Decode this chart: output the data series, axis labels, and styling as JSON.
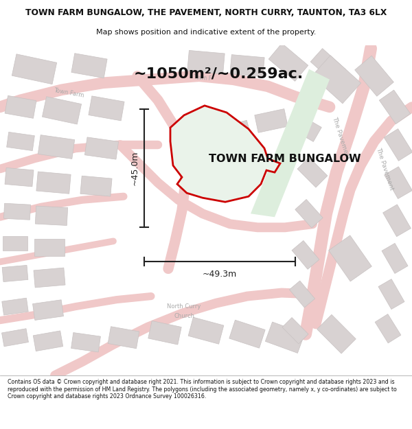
{
  "title_line1": "TOWN FARM BUNGALOW, THE PAVEMENT, NORTH CURRY, TAUNTON, TA3 6LX",
  "title_line2": "Map shows position and indicative extent of the property.",
  "area_text": "~1050m²/~0.259ac.",
  "property_label": "TOWN FARM BUNGALOW",
  "dim_vertical": "~45.0m",
  "dim_horizontal": "~49.3m",
  "footer_text": "Contains OS data © Crown copyright and database right 2021. This information is subject to Crown copyright and database rights 2023 and is reproduced with the permission of HM Land Registry. The polygons (including the associated geometry, namely x, y co-ordinates) are subject to Crown copyright and database rights 2023 Ordnance Survey 100026316.",
  "bg_color": "#ffffff",
  "map_bg": "#f8f4f4",
  "property_fill": "#e8f0e8",
  "property_edge": "#cc0000",
  "road_color": "#f0c8c8",
  "building_color": "#d8d2d2",
  "building_edge": "#c8c2c2",
  "dim_color": "#222222",
  "text_color": "#222222",
  "title_color": "#111111"
}
